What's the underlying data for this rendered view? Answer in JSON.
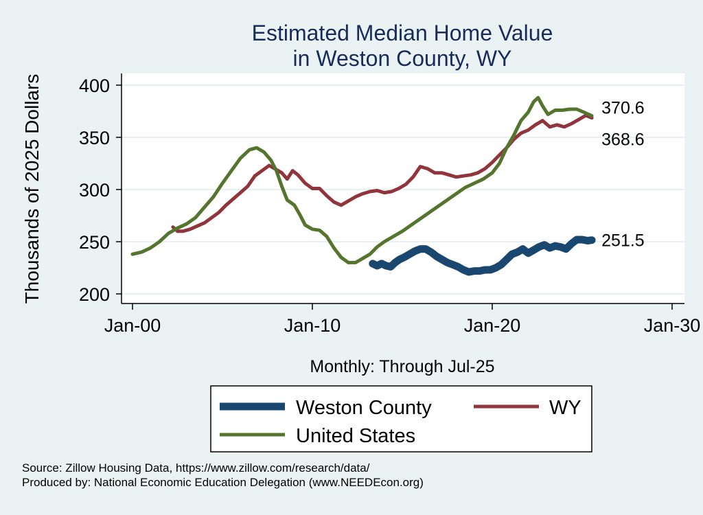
{
  "chart_data": {
    "type": "line",
    "title_lines": [
      "Estimated Median Home Value",
      "in Weston County, WY"
    ],
    "ylabel": "Thousands of 2025 Dollars",
    "xlabel": "Monthly: Through Jul-25",
    "ylim": [
      200,
      400
    ],
    "yticks": [
      200,
      250,
      300,
      350,
      400
    ],
    "xlim": [
      2000.0,
      2030.0
    ],
    "xticks": [
      {
        "value": 2000,
        "label": "Jan-00"
      },
      {
        "value": 2010,
        "label": "Jan-10"
      },
      {
        "value": 2020,
        "label": "Jan-20"
      },
      {
        "value": 2030,
        "label": "Jan-30"
      }
    ],
    "grid": true,
    "legend_placement": "bottom",
    "series": [
      {
        "name": "Weston County",
        "color": "#1a476f",
        "width": 11,
        "end_label": "251.5",
        "points": [
          [
            2013.35,
            229
          ],
          [
            2013.6,
            227
          ],
          [
            2013.85,
            229
          ],
          [
            2014.1,
            227
          ],
          [
            2014.35,
            226
          ],
          [
            2014.6,
            230
          ],
          [
            2014.85,
            233
          ],
          [
            2015.1,
            235
          ],
          [
            2015.4,
            238
          ],
          [
            2015.7,
            241
          ],
          [
            2016.0,
            243
          ],
          [
            2016.3,
            243
          ],
          [
            2016.6,
            240
          ],
          [
            2016.9,
            236
          ],
          [
            2017.2,
            233
          ],
          [
            2017.5,
            230
          ],
          [
            2017.8,
            228
          ],
          [
            2018.1,
            226
          ],
          [
            2018.4,
            223
          ],
          [
            2018.7,
            221
          ],
          [
            2019.0,
            222
          ],
          [
            2019.3,
            222
          ],
          [
            2019.6,
            223
          ],
          [
            2019.9,
            223
          ],
          [
            2020.2,
            225
          ],
          [
            2020.5,
            228
          ],
          [
            2020.8,
            233
          ],
          [
            2021.1,
            238
          ],
          [
            2021.4,
            240
          ],
          [
            2021.7,
            243
          ],
          [
            2022.0,
            239
          ],
          [
            2022.3,
            242
          ],
          [
            2022.6,
            245
          ],
          [
            2022.9,
            247
          ],
          [
            2023.2,
            244
          ],
          [
            2023.5,
            246
          ],
          [
            2023.8,
            245
          ],
          [
            2024.1,
            243
          ],
          [
            2024.4,
            248
          ],
          [
            2024.7,
            252
          ],
          [
            2025.0,
            252
          ],
          [
            2025.3,
            251
          ],
          [
            2025.54,
            251.5
          ]
        ]
      },
      {
        "name": "WY",
        "color": "#90353b",
        "width": 5,
        "end_label": "368.6",
        "points": [
          [
            2002.25,
            264
          ],
          [
            2002.5,
            260
          ],
          [
            2002.8,
            260
          ],
          [
            2003.2,
            262
          ],
          [
            2003.6,
            265
          ],
          [
            2004.0,
            268
          ],
          [
            2004.4,
            273
          ],
          [
            2004.8,
            278
          ],
          [
            2005.2,
            285
          ],
          [
            2005.6,
            291
          ],
          [
            2006.0,
            297
          ],
          [
            2006.4,
            303
          ],
          [
            2006.8,
            313
          ],
          [
            2007.2,
            318
          ],
          [
            2007.6,
            323
          ],
          [
            2008.0,
            319
          ],
          [
            2008.3,
            316
          ],
          [
            2008.6,
            310
          ],
          [
            2008.9,
            318
          ],
          [
            2009.2,
            314
          ],
          [
            2009.6,
            306
          ],
          [
            2010.0,
            301
          ],
          [
            2010.4,
            301
          ],
          [
            2010.8,
            294
          ],
          [
            2011.2,
            288
          ],
          [
            2011.6,
            285
          ],
          [
            2012.0,
            289
          ],
          [
            2012.4,
            293
          ],
          [
            2012.8,
            296
          ],
          [
            2013.2,
            298
          ],
          [
            2013.6,
            299
          ],
          [
            2014.0,
            297
          ],
          [
            2014.4,
            298
          ],
          [
            2014.8,
            301
          ],
          [
            2015.2,
            305
          ],
          [
            2015.6,
            312
          ],
          [
            2016.0,
            322
          ],
          [
            2016.4,
            320
          ],
          [
            2016.8,
            316
          ],
          [
            2017.2,
            316
          ],
          [
            2017.6,
            314
          ],
          [
            2018.0,
            312
          ],
          [
            2018.4,
            313
          ],
          [
            2018.8,
            314
          ],
          [
            2019.2,
            316
          ],
          [
            2019.6,
            320
          ],
          [
            2020.0,
            326
          ],
          [
            2020.4,
            333
          ],
          [
            2020.8,
            340
          ],
          [
            2021.2,
            348
          ],
          [
            2021.6,
            354
          ],
          [
            2022.0,
            357
          ],
          [
            2022.4,
            362
          ],
          [
            2022.8,
            366
          ],
          [
            2023.2,
            360
          ],
          [
            2023.6,
            362
          ],
          [
            2024.0,
            360
          ],
          [
            2024.4,
            363
          ],
          [
            2024.8,
            367
          ],
          [
            2025.2,
            371
          ],
          [
            2025.54,
            368.6
          ]
        ]
      },
      {
        "name": "United States",
        "color": "#55752f",
        "width": 5,
        "end_label": "370.6",
        "points": [
          [
            2000.0,
            238
          ],
          [
            2000.5,
            240
          ],
          [
            2001.0,
            244
          ],
          [
            2001.5,
            250
          ],
          [
            2002.0,
            258
          ],
          [
            2002.5,
            263
          ],
          [
            2003.0,
            267
          ],
          [
            2003.5,
            273
          ],
          [
            2004.0,
            283
          ],
          [
            2004.5,
            293
          ],
          [
            2005.0,
            306
          ],
          [
            2005.5,
            318
          ],
          [
            2006.0,
            330
          ],
          [
            2006.5,
            338
          ],
          [
            2006.9,
            340
          ],
          [
            2007.3,
            336
          ],
          [
            2007.7,
            328
          ],
          [
            2008.0,
            318
          ],
          [
            2008.3,
            303
          ],
          [
            2008.6,
            290
          ],
          [
            2009.0,
            285
          ],
          [
            2009.3,
            276
          ],
          [
            2009.6,
            266
          ],
          [
            2010.0,
            262
          ],
          [
            2010.4,
            261
          ],
          [
            2010.8,
            255
          ],
          [
            2011.2,
            244
          ],
          [
            2011.6,
            235
          ],
          [
            2012.0,
            230
          ],
          [
            2012.4,
            230
          ],
          [
            2012.8,
            234
          ],
          [
            2013.2,
            238
          ],
          [
            2013.6,
            245
          ],
          [
            2014.0,
            250
          ],
          [
            2014.5,
            255
          ],
          [
            2015.0,
            260
          ],
          [
            2015.5,
            266
          ],
          [
            2016.0,
            272
          ],
          [
            2016.5,
            278
          ],
          [
            2017.0,
            284
          ],
          [
            2017.5,
            290
          ],
          [
            2018.0,
            296
          ],
          [
            2018.5,
            302
          ],
          [
            2019.0,
            306
          ],
          [
            2019.5,
            310
          ],
          [
            2020.0,
            316
          ],
          [
            2020.4,
            325
          ],
          [
            2020.8,
            340
          ],
          [
            2021.2,
            352
          ],
          [
            2021.6,
            366
          ],
          [
            2022.0,
            374
          ],
          [
            2022.3,
            384
          ],
          [
            2022.55,
            388
          ],
          [
            2022.8,
            380
          ],
          [
            2023.1,
            372
          ],
          [
            2023.5,
            376
          ],
          [
            2023.9,
            376
          ],
          [
            2024.3,
            377
          ],
          [
            2024.7,
            377
          ],
          [
            2025.1,
            374
          ],
          [
            2025.54,
            370.6
          ]
        ]
      }
    ]
  },
  "legend": {
    "items": [
      {
        "label": "Weston County",
        "color": "#1a476f"
      },
      {
        "label": "WY",
        "color": "#90353b"
      },
      {
        "label": "United States",
        "color": "#55752f"
      }
    ]
  },
  "footer": {
    "source": "Source: Zillow Housing Data, https://www.zillow.com/research/data/",
    "produced_by": "Produced by: National Economic Education Delegation (www.NEEDEcon.org)"
  },
  "colors": {
    "background": "#eaf2f3",
    "plot_background": "#ffffff",
    "grid": "#e1ebef",
    "title": "#1a2b5a"
  }
}
